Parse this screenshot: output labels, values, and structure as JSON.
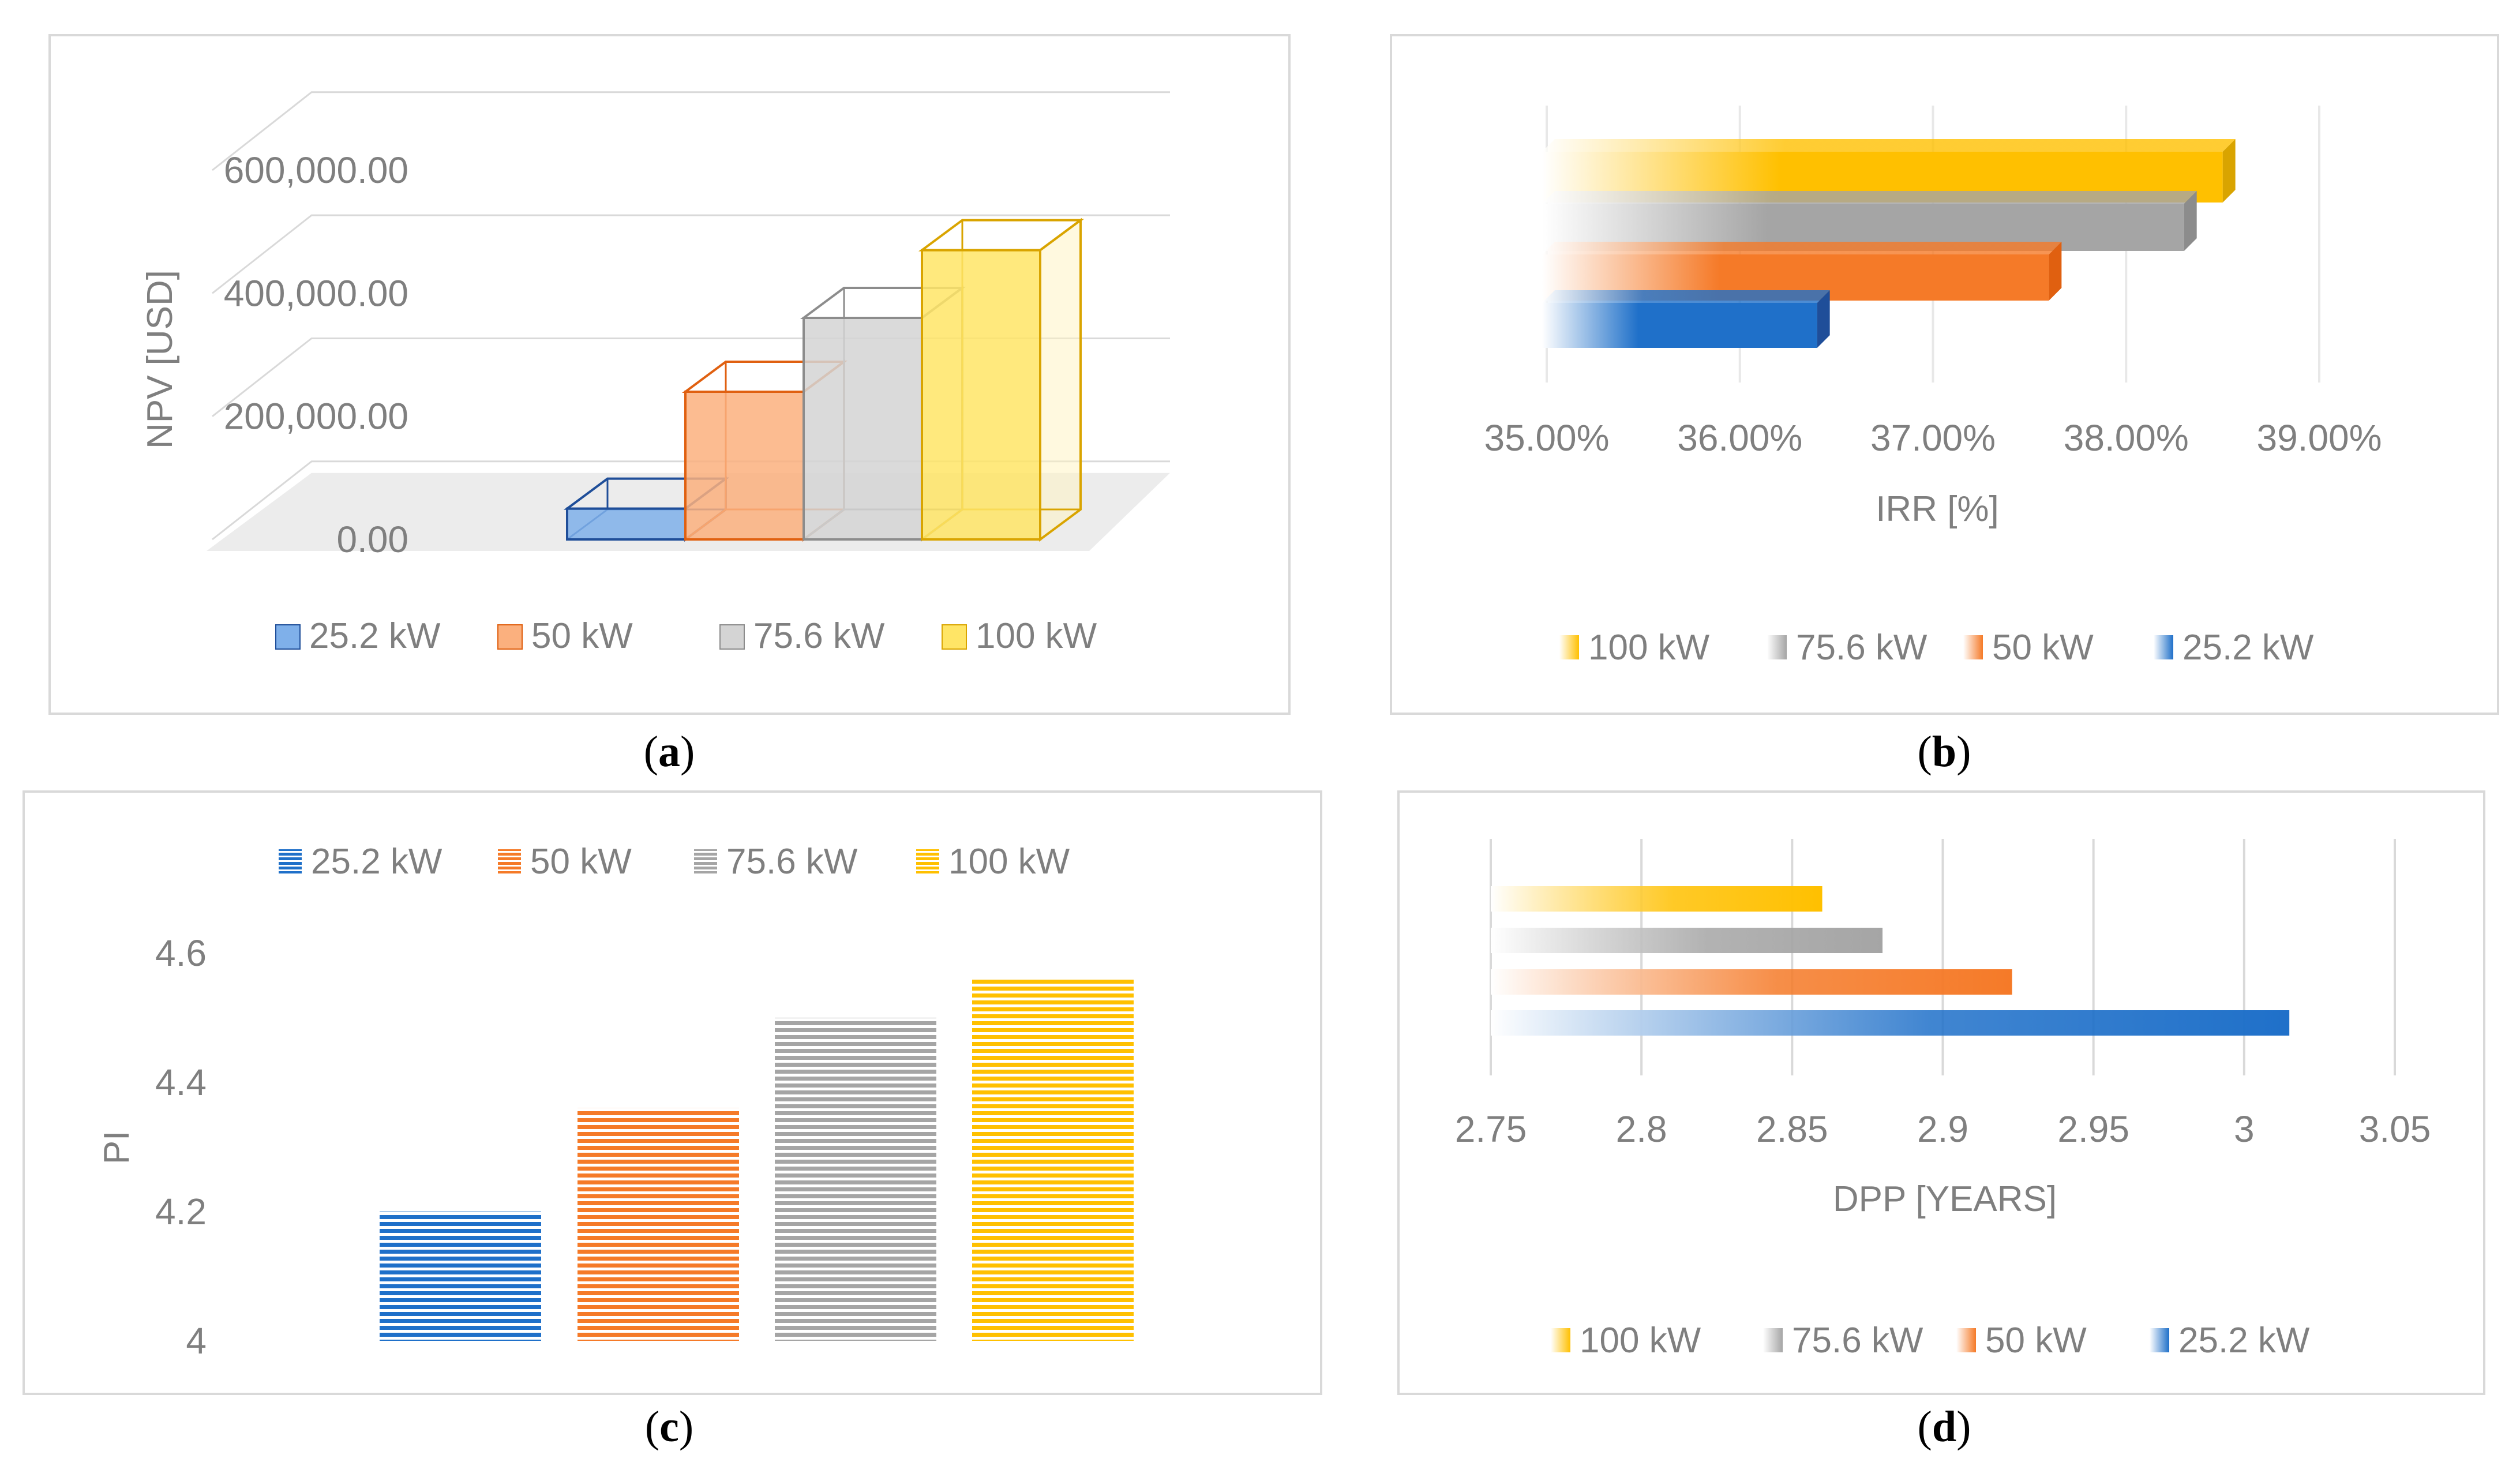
{
  "colors": {
    "blue": "#1f70c9",
    "orange": "#f57a28",
    "gray": "#a5a5a5",
    "yellow": "#ffc000",
    "yellow_light": "#ffe566",
    "axis_text": "#7f7f7f",
    "grid": "#d9d9d9"
  },
  "captions": {
    "a": "a",
    "b": "b",
    "c": "c",
    "d": "d"
  },
  "chart_data": [
    {
      "id": "a",
      "type": "bar",
      "style": "3d-column",
      "categories": [
        "25.2 kW",
        "50 kW",
        "75.6 kW",
        "100 kW"
      ],
      "values": [
        50000,
        240000,
        360000,
        470000
      ],
      "ylabel": "NPV [USD]",
      "ylim": [
        0,
        600000
      ],
      "yticks": [
        "0.00",
        "200,000.00",
        "400,000.00",
        "600,000.00"
      ],
      "legend": {
        "placement": "bottom",
        "entries": [
          "25.2 kW",
          "50 kW",
          "75.6 kW",
          "100 kW"
        ]
      },
      "grid": true
    },
    {
      "id": "b",
      "type": "bar",
      "orientation": "horizontal",
      "style": "3d-bar-gradient",
      "categories": [
        "25.2 kW",
        "50 kW",
        "75.6 kW",
        "100 kW"
      ],
      "values": [
        36.4,
        37.6,
        38.3,
        38.5
      ],
      "xlabel": "IRR [%]",
      "xlim": [
        35,
        39
      ],
      "xticks": [
        "35.00%",
        "36.00%",
        "37.00%",
        "38.00%",
        "39.00%"
      ],
      "legend": {
        "placement": "bottom",
        "entries": [
          "100 kW",
          "75.6 kW",
          "50 kW",
          "25.2 kW"
        ]
      },
      "grid": true
    },
    {
      "id": "c",
      "type": "bar",
      "style": "striped-column",
      "categories": [
        "25.2 kW",
        "50 kW",
        "75.6 kW",
        "100 kW"
      ],
      "values": [
        4.2,
        4.36,
        4.5,
        4.56
      ],
      "ylabel": "PI",
      "ylim": [
        4,
        4.6
      ],
      "yticks": [
        "4",
        "4.2",
        "4.4",
        "4.6"
      ],
      "legend": {
        "placement": "top",
        "entries": [
          "25.2 kW",
          "50 kW",
          "75.6 kW",
          "100 kW"
        ]
      },
      "grid": false
    },
    {
      "id": "d",
      "type": "bar",
      "orientation": "horizontal",
      "style": "gradient-bar",
      "categories": [
        "25.2 kW",
        "50 kW",
        "75.6 kW",
        "100 kW"
      ],
      "values": [
        3.015,
        2.923,
        2.88,
        2.86
      ],
      "xlabel": "DPP [YEARS]",
      "xlim": [
        2.75,
        3.05
      ],
      "xticks": [
        "2.75",
        "2.8",
        "2.85",
        "2.9",
        "2.95",
        "3",
        "3.05"
      ],
      "legend": {
        "placement": "bottom",
        "entries": [
          "100 kW",
          "75.6 kW",
          "50 kW",
          "25.2 kW"
        ]
      },
      "grid": true
    }
  ]
}
